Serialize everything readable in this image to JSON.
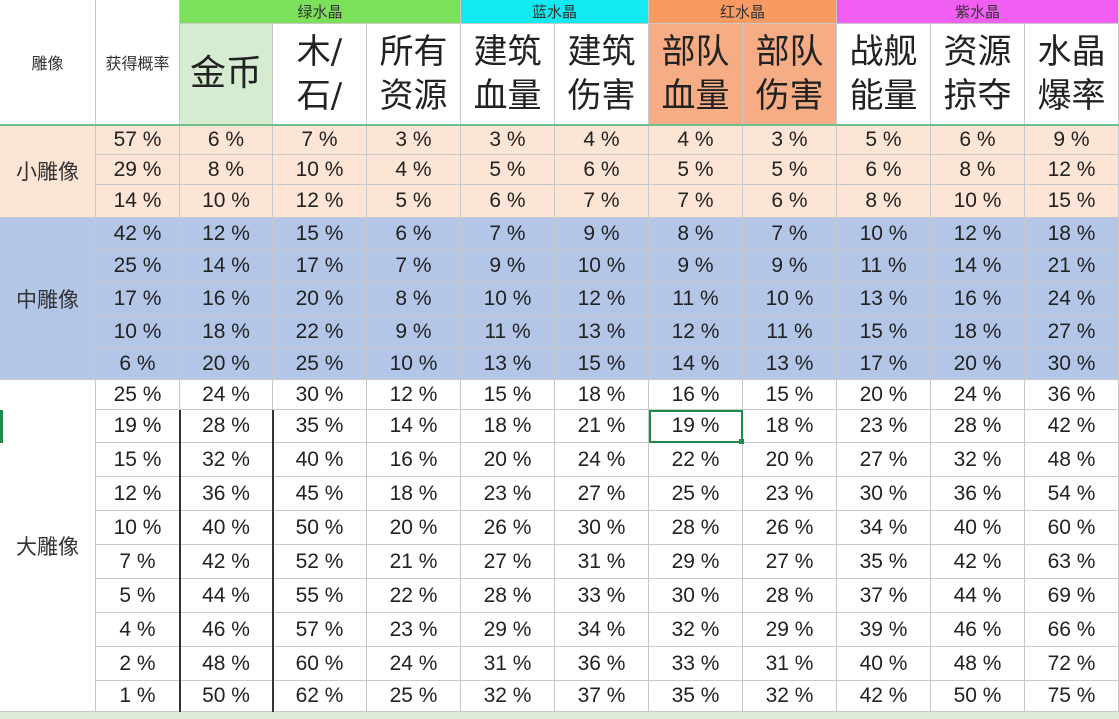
{
  "header": {
    "statue_label": "雕像",
    "probability_label": "获得概率",
    "groups": [
      {
        "label": "绿水晶",
        "color": "#7be05a"
      },
      {
        "label": "蓝水晶",
        "color": "#12e9f0"
      },
      {
        "label": "红水晶",
        "color": "#f99a62"
      },
      {
        "label": "紫水晶",
        "color": "#f05ff2"
      }
    ],
    "columns": [
      {
        "lines": [
          "金币"
        ],
        "bg": "#d6ecd0"
      },
      {
        "lines": [
          "木/",
          "石/"
        ],
        "bg": "#ffffff"
      },
      {
        "lines": [
          "所有",
          "资源"
        ],
        "bg": "#ffffff"
      },
      {
        "lines": [
          "建筑",
          "血量"
        ],
        "bg": "#ffffff"
      },
      {
        "lines": [
          "建筑",
          "伤害"
        ],
        "bg": "#ffffff"
      },
      {
        "lines": [
          "部队",
          "血量"
        ],
        "bg": "#f6ad85"
      },
      {
        "lines": [
          "部队",
          "伤害"
        ],
        "bg": "#f6ad85"
      },
      {
        "lines": [
          "战舰",
          "能量"
        ],
        "bg": "#ffffff"
      },
      {
        "lines": [
          "资源",
          "掠夺"
        ],
        "bg": "#ffffff"
      },
      {
        "lines": [
          "水晶",
          "爆率"
        ],
        "bg": "#ffffff"
      }
    ]
  },
  "colors": {
    "small_bg": "#fde5d6",
    "medium_bg": "#b4c6e7",
    "large_bg": "#ffffff",
    "header_bg": "#ffffff",
    "grid": "#c8c8c8",
    "selection": "#1e8a4c"
  },
  "tiers": [
    {
      "label": "小雕像",
      "rows": [
        {
          "prob": "57 %",
          "values": [
            "6 %",
            "7 %",
            "3 %",
            "3 %",
            "4 %",
            "4 %",
            "3 %",
            "5 %",
            "6 %",
            "9 %"
          ]
        },
        {
          "prob": "29 %",
          "values": [
            "8 %",
            "10 %",
            "4 %",
            "5 %",
            "6 %",
            "5 %",
            "5 %",
            "6 %",
            "8 %",
            "12 %"
          ]
        },
        {
          "prob": "14 %",
          "values": [
            "10 %",
            "12 %",
            "5 %",
            "6 %",
            "7 %",
            "7 %",
            "6 %",
            "8 %",
            "10 %",
            "15 %"
          ]
        }
      ]
    },
    {
      "label": "中雕像",
      "rows": [
        {
          "prob": "42 %",
          "values": [
            "12 %",
            "15 %",
            "6 %",
            "7 %",
            "9 %",
            "8 %",
            "7 %",
            "10 %",
            "12 %",
            "18 %"
          ]
        },
        {
          "prob": "25 %",
          "values": [
            "14 %",
            "17 %",
            "7 %",
            "9 %",
            "10 %",
            "9 %",
            "9 %",
            "11 %",
            "14 %",
            "21 %"
          ]
        },
        {
          "prob": "17 %",
          "values": [
            "16 %",
            "20 %",
            "8 %",
            "10 %",
            "12 %",
            "11 %",
            "10 %",
            "13 %",
            "16 %",
            "24 %"
          ]
        },
        {
          "prob": "10 %",
          "values": [
            "18 %",
            "22 %",
            "9 %",
            "11 %",
            "13 %",
            "12 %",
            "11 %",
            "15 %",
            "18 %",
            "27 %"
          ]
        },
        {
          "prob": "6 %",
          "values": [
            "20 %",
            "25 %",
            "10 %",
            "13 %",
            "15 %",
            "14 %",
            "13 %",
            "17 %",
            "20 %",
            "30 %"
          ]
        }
      ]
    },
    {
      "label": "大雕像",
      "rows": [
        {
          "prob": "25 %",
          "values": [
            "24 %",
            "30 %",
            "12 %",
            "15 %",
            "18 %",
            "16 %",
            "15 %",
            "20 %",
            "24 %",
            "36 %"
          ]
        },
        {
          "prob": "19 %",
          "values": [
            "28 %",
            "35 %",
            "14 %",
            "18 %",
            "21 %",
            "19 %",
            "18 %",
            "23 %",
            "28 %",
            "42 %"
          ]
        },
        {
          "prob": "15 %",
          "values": [
            "32 %",
            "40 %",
            "16 %",
            "20 %",
            "24 %",
            "22 %",
            "20 %",
            "27 %",
            "32 %",
            "48 %"
          ]
        },
        {
          "prob": "12 %",
          "values": [
            "36 %",
            "45 %",
            "18 %",
            "23 %",
            "27 %",
            "25 %",
            "23 %",
            "30 %",
            "36 %",
            "54 %"
          ]
        },
        {
          "prob": "10 %",
          "values": [
            "40 %",
            "50 %",
            "20 %",
            "26 %",
            "30 %",
            "28 %",
            "26 %",
            "34 %",
            "40 %",
            "60 %"
          ]
        },
        {
          "prob": "7 %",
          "values": [
            "42 %",
            "52 %",
            "21 %",
            "27 %",
            "31 %",
            "29 %",
            "27 %",
            "35 %",
            "42 %",
            "63 %"
          ]
        },
        {
          "prob": "5 %",
          "values": [
            "44 %",
            "55 %",
            "22 %",
            "28 %",
            "33 %",
            "30 %",
            "28 %",
            "37 %",
            "44 %",
            "69 %"
          ]
        },
        {
          "prob": "4 %",
          "values": [
            "46 %",
            "57 %",
            "23 %",
            "29 %",
            "34 %",
            "32 %",
            "29 %",
            "39 %",
            "46 %",
            "66 %"
          ]
        },
        {
          "prob": "2 %",
          "values": [
            "48 %",
            "60 %",
            "24 %",
            "31 %",
            "36 %",
            "33 %",
            "31 %",
            "40 %",
            "48 %",
            "72 %"
          ]
        },
        {
          "prob": "1 %",
          "values": [
            "50 %",
            "62 %",
            "25 %",
            "32 %",
            "37 %",
            "35 %",
            "32 %",
            "42 %",
            "50 %",
            "75 %"
          ]
        }
      ]
    }
  ],
  "selected_cell": {
    "tier": 2,
    "row": 1,
    "column": 5
  }
}
